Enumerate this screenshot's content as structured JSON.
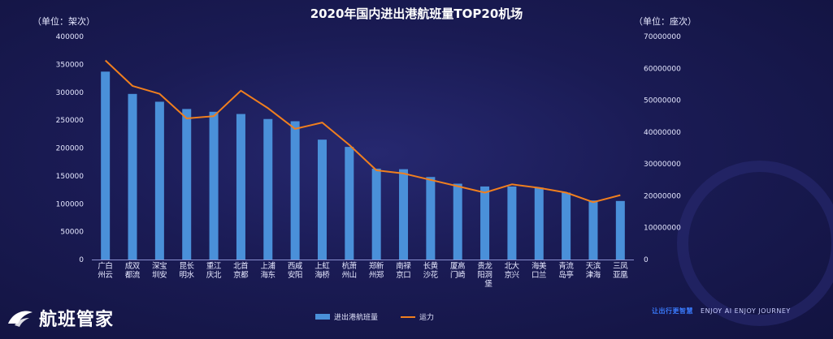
{
  "brand": {
    "name": "航班管家"
  },
  "slogan": {
    "cn": "让出行更智慧",
    "en": "ENJOY AI  ENJOY JOURNEY"
  },
  "legend": {
    "bar_label": "进出港航班量",
    "line_label": "运力"
  },
  "colors": {
    "bar": "#4a90d9",
    "line": "#f07f1e",
    "background": "#1a1b54"
  },
  "chart_data": {
    "type": "bar",
    "title": "2020年国内进出港航班量TOP20机场",
    "y_left_unit": "（单位：架次）",
    "y_right_unit": "（单位：座次）",
    "categories": [
      "广州白云",
      "成都双流",
      "深圳宝安",
      "昆明长水",
      "重庆江北",
      "北京首都",
      "上海浦东",
      "西安咸阳",
      "上海虹桥",
      "杭州萧山",
      "郑州新郑",
      "南京禄口",
      "长沙黄花",
      "厦门高崎",
      "贵阳龙洞堡",
      "北京大兴",
      "海口美兰",
      "青岛流亭",
      "天津滨海",
      "三亚凤凰"
    ],
    "y_left": {
      "min": 0,
      "max": 400000,
      "ticks": [
        "0",
        "50000",
        "100000",
        "150000",
        "200000",
        "250000",
        "300000",
        "350000",
        "400000"
      ]
    },
    "y_right": {
      "min": 0,
      "max": 70000000,
      "ticks": [
        "0",
        "10000000",
        "20000000",
        "30000000",
        "40000000",
        "50000000",
        "60000000",
        "70000000"
      ]
    },
    "series": [
      {
        "name": "进出港航班量",
        "type": "bar",
        "axis": "left",
        "values": [
          337000,
          297000,
          283000,
          270000,
          265000,
          261000,
          252000,
          248000,
          215000,
          202000,
          163000,
          162000,
          148000,
          136000,
          131000,
          131000,
          129000,
          120000,
          106000,
          105000
        ]
      },
      {
        "name": "运力",
        "type": "line",
        "axis": "right",
        "values": [
          62500000,
          54500000,
          52000000,
          44300000,
          45000000,
          53000000,
          47500000,
          41000000,
          43000000,
          36000000,
          28000000,
          27000000,
          25000000,
          23000000,
          21000000,
          23600000,
          22500000,
          21000000,
          18000000,
          20200000
        ]
      }
    ],
    "grid": false,
    "legend_position": "bottom"
  }
}
